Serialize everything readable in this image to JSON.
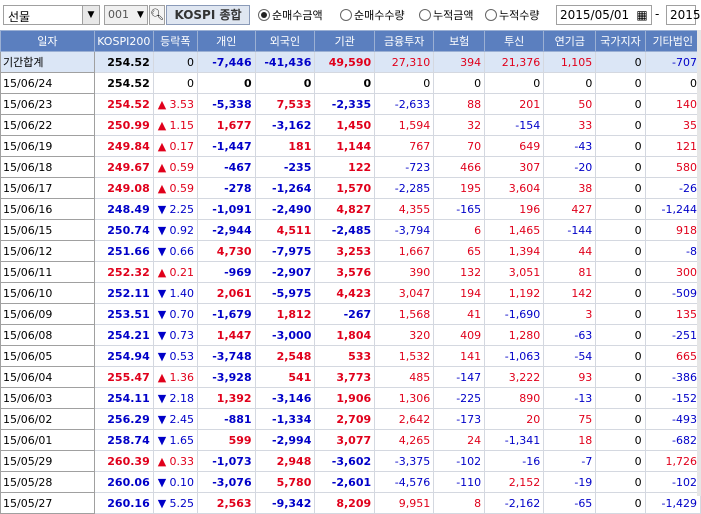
{
  "toolbar": {
    "market_select": "선물",
    "code": "001",
    "search_icon": "magnifier-icon",
    "market_button": "KOSPI 종합",
    "radios": [
      {
        "label": "순매수금액",
        "selected": true
      },
      {
        "label": "순매수수량",
        "selected": false
      },
      {
        "label": "누적금액",
        "selected": false
      },
      {
        "label": "누적수량",
        "selected": false
      }
    ],
    "date_from": "2015/05/01",
    "date_separator": "-",
    "date_to": "2015"
  },
  "table": {
    "headers": [
      "일자",
      "KOSPI200",
      "등락폭",
      "개인",
      "외국인",
      "기관",
      "금융투자",
      "보험",
      "투신",
      "연기금",
      "국가지자",
      "기타법인"
    ],
    "summary": {
      "date": "기간합계",
      "k200": "254.52",
      "chg_dir": "",
      "chg": "0",
      "retail": "-7,446",
      "foreign": "-41,436",
      "inst": "49,590",
      "finvest": "27,310",
      "insur": "394",
      "trust": "21,376",
      "pension": "1,105",
      "gov": "0",
      "etc": "-707"
    },
    "rows": [
      {
        "date": "15/06/24",
        "k200": "254.52",
        "chg_dir": "",
        "chg": "0",
        "retail": "0",
        "foreign": "0",
        "inst": "0",
        "finvest": "0",
        "insur": "0",
        "trust": "0",
        "pension": "0",
        "gov": "0",
        "etc": "0"
      },
      {
        "date": "15/06/23",
        "k200": "254.52",
        "chg_dir": "up",
        "chg": "3.53",
        "retail": "-5,338",
        "foreign": "7,533",
        "inst": "-2,335",
        "finvest": "-2,633",
        "insur": "88",
        "trust": "201",
        "pension": "50",
        "gov": "0",
        "etc": "140"
      },
      {
        "date": "15/06/22",
        "k200": "250.99",
        "chg_dir": "up",
        "chg": "1.15",
        "retail": "1,677",
        "foreign": "-3,162",
        "inst": "1,450",
        "finvest": "1,594",
        "insur": "32",
        "trust": "-154",
        "pension": "33",
        "gov": "0",
        "etc": "35"
      },
      {
        "date": "15/06/19",
        "k200": "249.84",
        "chg_dir": "up",
        "chg": "0.17",
        "retail": "-1,447",
        "foreign": "181",
        "inst": "1,144",
        "finvest": "767",
        "insur": "70",
        "trust": "649",
        "pension": "-43",
        "gov": "0",
        "etc": "121"
      },
      {
        "date": "15/06/18",
        "k200": "249.67",
        "chg_dir": "up",
        "chg": "0.59",
        "retail": "-467",
        "foreign": "-235",
        "inst": "122",
        "finvest": "-723",
        "insur": "466",
        "trust": "307",
        "pension": "-20",
        "gov": "0",
        "etc": "580"
      },
      {
        "date": "15/06/17",
        "k200": "249.08",
        "chg_dir": "up",
        "chg": "0.59",
        "retail": "-278",
        "foreign": "-1,264",
        "inst": "1,570",
        "finvest": "-2,285",
        "insur": "195",
        "trust": "3,604",
        "pension": "38",
        "gov": "0",
        "etc": "-26"
      },
      {
        "date": "15/06/16",
        "k200": "248.49",
        "chg_dir": "dn",
        "chg": "2.25",
        "retail": "-1,091",
        "foreign": "-2,490",
        "inst": "4,827",
        "finvest": "4,355",
        "insur": "-165",
        "trust": "196",
        "pension": "427",
        "gov": "0",
        "etc": "-1,244"
      },
      {
        "date": "15/06/15",
        "k200": "250.74",
        "chg_dir": "dn",
        "chg": "0.92",
        "retail": "-2,944",
        "foreign": "4,511",
        "inst": "-2,485",
        "finvest": "-3,794",
        "insur": "6",
        "trust": "1,465",
        "pension": "-144",
        "gov": "0",
        "etc": "918"
      },
      {
        "date": "15/06/12",
        "k200": "251.66",
        "chg_dir": "dn",
        "chg": "0.66",
        "retail": "4,730",
        "foreign": "-7,975",
        "inst": "3,253",
        "finvest": "1,667",
        "insur": "65",
        "trust": "1,394",
        "pension": "44",
        "gov": "0",
        "etc": "-8"
      },
      {
        "date": "15/06/11",
        "k200": "252.32",
        "chg_dir": "up",
        "chg": "0.21",
        "retail": "-969",
        "foreign": "-2,907",
        "inst": "3,576",
        "finvest": "390",
        "insur": "132",
        "trust": "3,051",
        "pension": "81",
        "gov": "0",
        "etc": "300"
      },
      {
        "date": "15/06/10",
        "k200": "252.11",
        "chg_dir": "dn",
        "chg": "1.40",
        "retail": "2,061",
        "foreign": "-5,975",
        "inst": "4,423",
        "finvest": "3,047",
        "insur": "194",
        "trust": "1,192",
        "pension": "142",
        "gov": "0",
        "etc": "-509"
      },
      {
        "date": "15/06/09",
        "k200": "253.51",
        "chg_dir": "dn",
        "chg": "0.70",
        "retail": "-1,679",
        "foreign": "1,812",
        "inst": "-267",
        "finvest": "1,568",
        "insur": "41",
        "trust": "-1,690",
        "pension": "3",
        "gov": "0",
        "etc": "135"
      },
      {
        "date": "15/06/08",
        "k200": "254.21",
        "chg_dir": "dn",
        "chg": "0.73",
        "retail": "1,447",
        "foreign": "-3,000",
        "inst": "1,804",
        "finvest": "320",
        "insur": "409",
        "trust": "1,280",
        "pension": "-63",
        "gov": "0",
        "etc": "-251"
      },
      {
        "date": "15/06/05",
        "k200": "254.94",
        "chg_dir": "dn",
        "chg": "0.53",
        "retail": "-3,748",
        "foreign": "2,548",
        "inst": "533",
        "finvest": "1,532",
        "insur": "141",
        "trust": "-1,063",
        "pension": "-54",
        "gov": "0",
        "etc": "665"
      },
      {
        "date": "15/06/04",
        "k200": "255.47",
        "chg_dir": "up",
        "chg": "1.36",
        "retail": "-3,928",
        "foreign": "541",
        "inst": "3,773",
        "finvest": "485",
        "insur": "-147",
        "trust": "3,222",
        "pension": "93",
        "gov": "0",
        "etc": "-386"
      },
      {
        "date": "15/06/03",
        "k200": "254.11",
        "chg_dir": "dn",
        "chg": "2.18",
        "retail": "1,392",
        "foreign": "-3,146",
        "inst": "1,906",
        "finvest": "1,306",
        "insur": "-225",
        "trust": "890",
        "pension": "-13",
        "gov": "0",
        "etc": "-152"
      },
      {
        "date": "15/06/02",
        "k200": "256.29",
        "chg_dir": "dn",
        "chg": "2.45",
        "retail": "-881",
        "foreign": "-1,334",
        "inst": "2,709",
        "finvest": "2,642",
        "insur": "-173",
        "trust": "20",
        "pension": "75",
        "gov": "0",
        "etc": "-493"
      },
      {
        "date": "15/06/01",
        "k200": "258.74",
        "chg_dir": "dn",
        "chg": "1.65",
        "retail": "599",
        "foreign": "-2,994",
        "inst": "3,077",
        "finvest": "4,265",
        "insur": "24",
        "trust": "-1,341",
        "pension": "18",
        "gov": "0",
        "etc": "-682"
      },
      {
        "date": "15/05/29",
        "k200": "260.39",
        "chg_dir": "up",
        "chg": "0.33",
        "retail": "-1,073",
        "foreign": "2,948",
        "inst": "-3,602",
        "finvest": "-3,375",
        "insur": "-102",
        "trust": "-16",
        "pension": "-7",
        "gov": "0",
        "etc": "1,726"
      },
      {
        "date": "15/05/28",
        "k200": "260.06",
        "chg_dir": "dn",
        "chg": "0.10",
        "retail": "-3,076",
        "foreign": "5,780",
        "inst": "-2,601",
        "finvest": "-4,576",
        "insur": "-110",
        "trust": "2,152",
        "pension": "-19",
        "gov": "0",
        "etc": "-102"
      },
      {
        "date": "15/05/27",
        "k200": "260.16",
        "chg_dir": "dn",
        "chg": "5.25",
        "retail": "2,563",
        "foreign": "-9,342",
        "inst": "8,209",
        "finvest": "9,951",
        "insur": "8",
        "trust": "-2,162",
        "pension": "-65",
        "gov": "0",
        "etc": "-1,429"
      }
    ]
  },
  "colors": {
    "up": "#e0001b",
    "down": "#0000c8",
    "header_bg": "#5b7fbf",
    "summary_bg": "#dbe6f6"
  }
}
